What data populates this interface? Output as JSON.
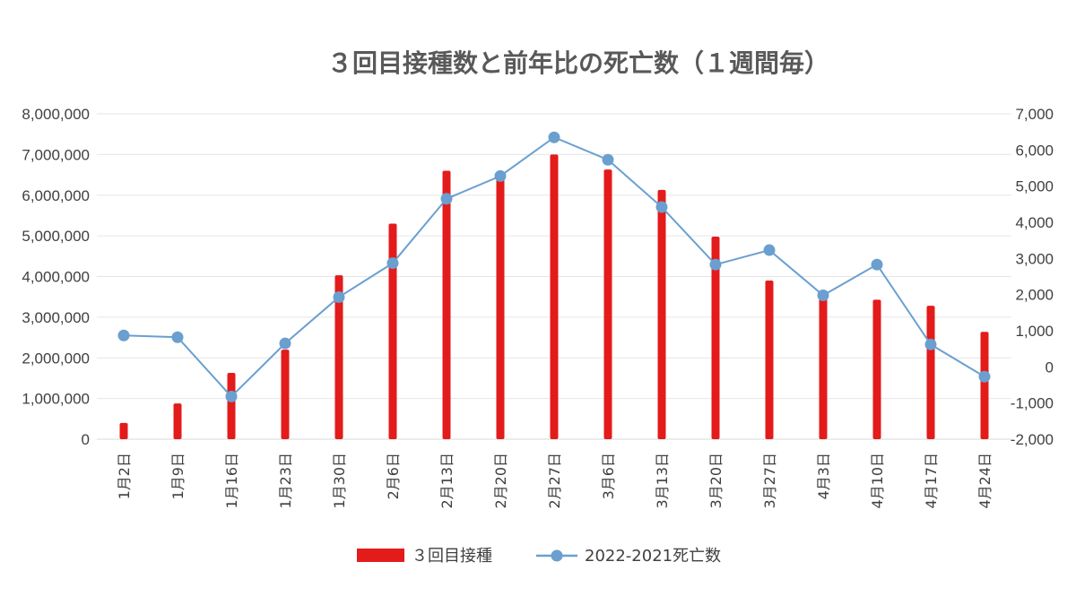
{
  "chart_data": {
    "type": "bar+line",
    "title": "３回目接種数と前年比の死亡数（１週間毎）",
    "categories": [
      "1月2日",
      "1月9日",
      "1月16日",
      "1月23日",
      "1月30日",
      "2月6日",
      "2月13日",
      "2月20日",
      "2月27日",
      "3月6日",
      "3月13日",
      "3月20日",
      "3月27日",
      "4月3日",
      "4月10日",
      "4月17日",
      "4月24日"
    ],
    "series": [
      {
        "name": "３回目接種",
        "type": "bar",
        "axis": "left",
        "color": "#e31b1b",
        "values": [
          400000,
          880000,
          1630000,
          2200000,
          4030000,
          5300000,
          6600000,
          6480000,
          7000000,
          6630000,
          6130000,
          4980000,
          3900000,
          3620000,
          3430000,
          3280000,
          2640000
        ]
      },
      {
        "name": "2022-2021死亡数",
        "type": "line",
        "axis": "right",
        "color": "#6a9fcf",
        "values": [
          870,
          820,
          -820,
          650,
          1930,
          2870,
          4650,
          5280,
          6350,
          5730,
          4420,
          2830,
          3230,
          1980,
          2830,
          620,
          -270
        ]
      }
    ],
    "y_left": {
      "ylim": [
        0,
        8000000
      ],
      "ticks": [
        0,
        1000000,
        2000000,
        3000000,
        4000000,
        5000000,
        6000000,
        7000000,
        8000000
      ],
      "tick_labels": [
        "0",
        "1,000,000",
        "2,000,000",
        "3,000,000",
        "4,000,000",
        "5,000,000",
        "6,000,000",
        "7,000,000",
        "8,000,000"
      ]
    },
    "y_right": {
      "ylim": [
        -2000,
        7000
      ],
      "ticks": [
        -2000,
        -1000,
        0,
        1000,
        2000,
        3000,
        4000,
        5000,
        6000,
        7000
      ],
      "tick_labels": [
        "-2,000",
        "-1,000",
        "0",
        "1,000",
        "2,000",
        "3,000",
        "4,000",
        "5,000",
        "6,000",
        "7,000"
      ]
    },
    "grid": true,
    "legend": "bottom"
  }
}
